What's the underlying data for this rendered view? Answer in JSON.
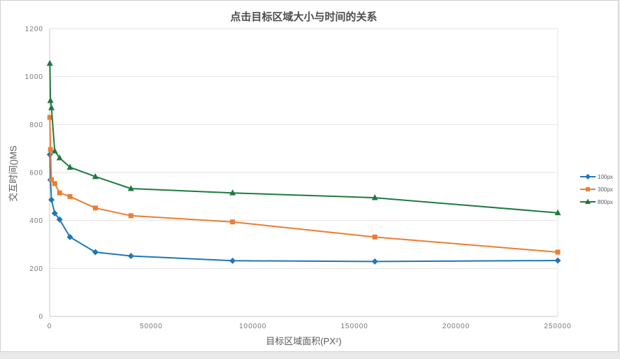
{
  "page": {
    "background_color": "#e9e9e9",
    "card_background": "#ffffff",
    "card_border_color": "#cfcfcf"
  },
  "chart_data": {
    "type": "line",
    "title": "点击目标区域大小与时间的关系",
    "xlabel": "目标区域面积(PX²)",
    "ylabel": "交互时间()MS",
    "xlim": [
      0,
      250000
    ],
    "ylim": [
      0,
      1200
    ],
    "x_ticks": [
      0,
      50000,
      100000,
      150000,
      200000,
      250000
    ],
    "y_ticks": [
      0,
      200,
      400,
      600,
      800,
      1000,
      1200
    ],
    "grid": "horizontal",
    "legend_position": "right",
    "x": [
      100,
      400,
      900,
      2500,
      4900,
      10000,
      22500,
      40000,
      90000,
      160000,
      250000
    ],
    "series": [
      {
        "name": "100px",
        "color": "#1F77B4",
        "marker": "diamond",
        "values": [
          675,
          569,
          486,
          430,
          404,
          331,
          268,
          252,
          232,
          229,
          233
        ]
      },
      {
        "name": "300px",
        "color": "#ED7D31",
        "marker": "square",
        "values": [
          830,
          696,
          570,
          554,
          515,
          500,
          452,
          420,
          394,
          331,
          268
        ]
      },
      {
        "name": "800px",
        "color": "#1F7A40",
        "marker": "triangle",
        "values": [
          1055,
          900,
          870,
          690,
          661,
          622,
          583,
          533,
          515,
          495,
          432
        ]
      }
    ],
    "colors": {
      "gridline": "#e3e3e3",
      "axis_line": "#c9c9c9",
      "tick_text": "#757575",
      "title_text": "#4d4d4d",
      "axis_label_text": "#595959"
    }
  }
}
